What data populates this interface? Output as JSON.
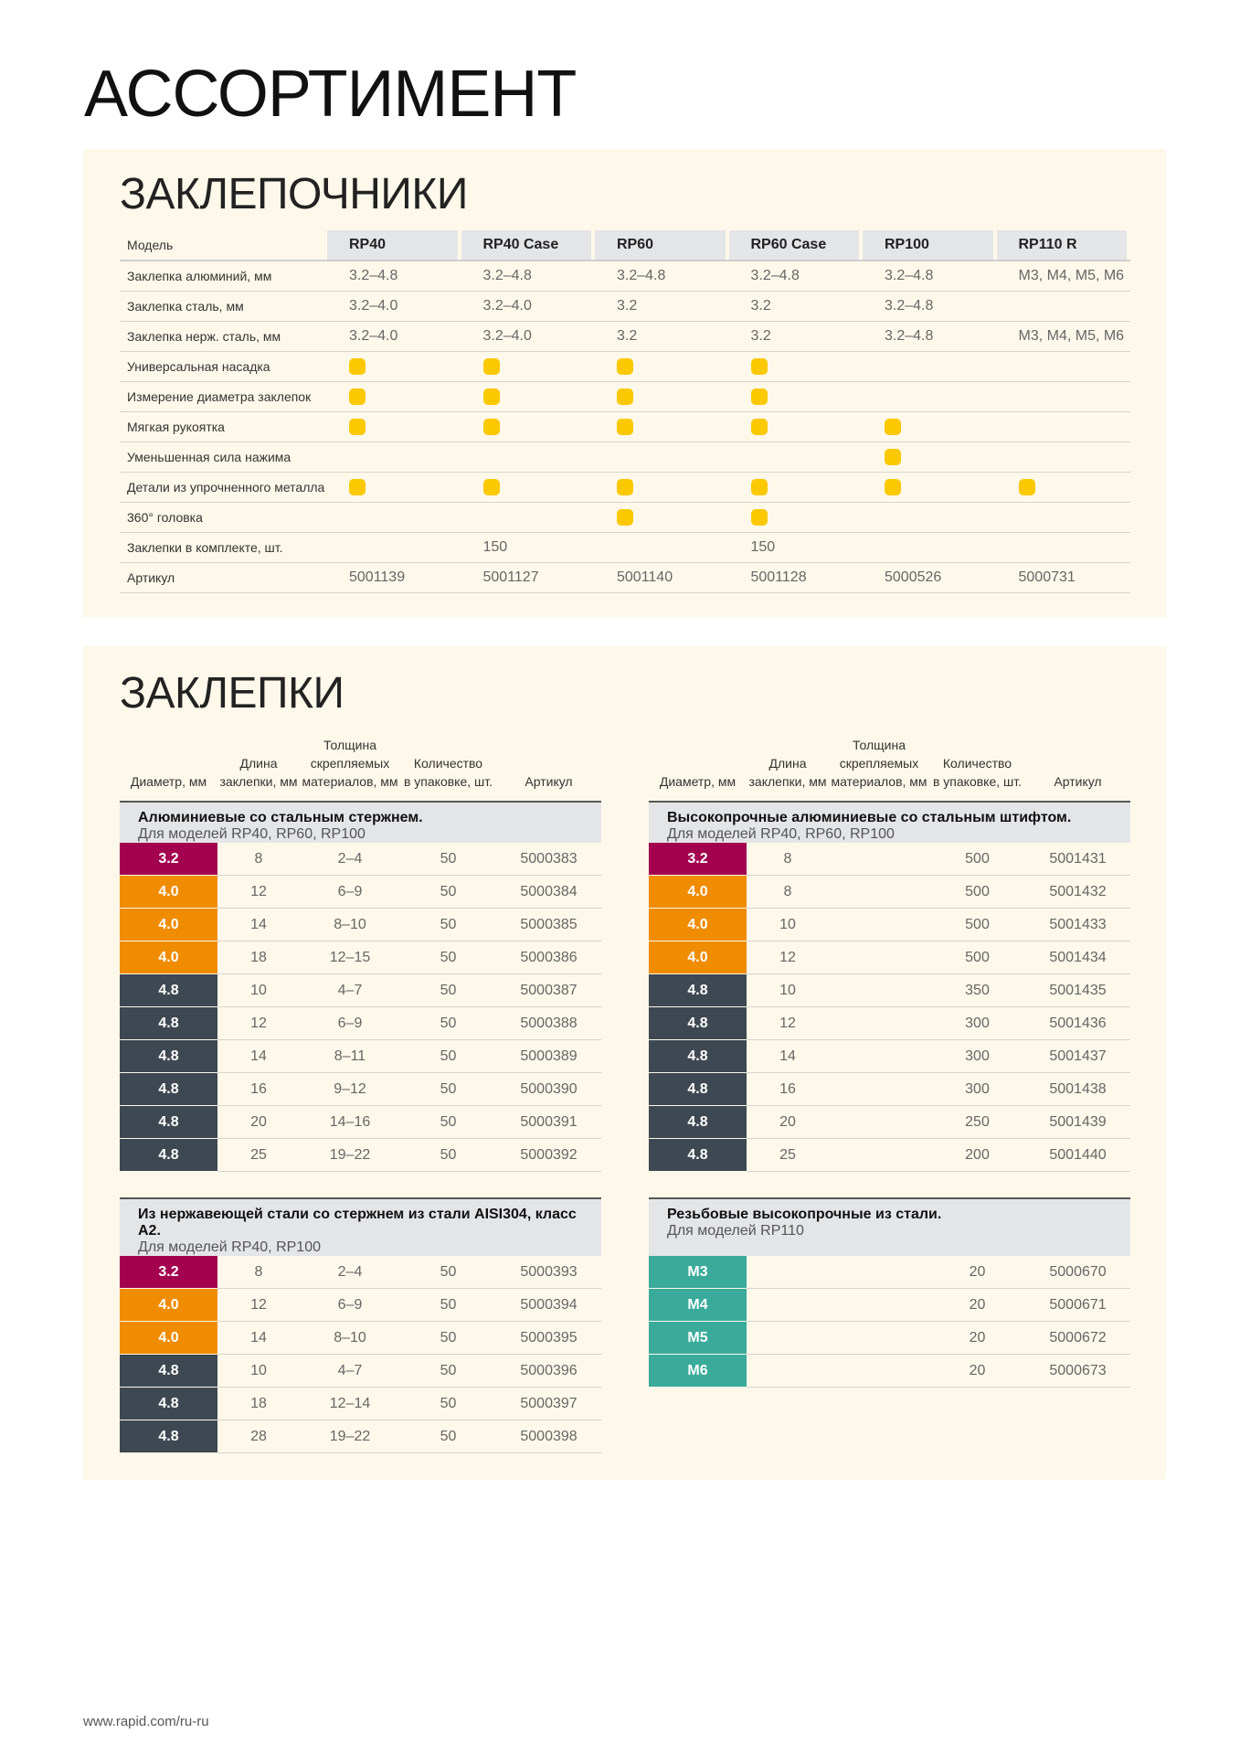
{
  "title": "АССОРТИМЕНТ",
  "tools": {
    "heading": "ЗАКЛЕПОЧНИКИ",
    "label_header": "Модель",
    "models": [
      "RP40",
      "RP40 Case",
      "RP60",
      "RP60 Case",
      "RP100",
      "RP110 R"
    ],
    "rows": [
      {
        "label": "Заклепка алюминий, мм",
        "values": [
          "3.2–4.8",
          "3.2–4.8",
          "3.2–4.8",
          "3.2–4.8",
          "3.2–4.8",
          "M3, M4, M5, M6"
        ]
      },
      {
        "label": "Заклепка сталь, мм",
        "values": [
          "3.2–4.0",
          "3.2–4.0",
          "3.2",
          "3.2",
          "3.2–4.8",
          ""
        ]
      },
      {
        "label": "Заклепка нерж. сталь, мм",
        "values": [
          "3.2–4.0",
          "3.2–4.0",
          "3.2",
          "3.2",
          "3.2–4.8",
          "M3, M4, M5, M6"
        ]
      },
      {
        "label": "Универсальная насадка",
        "dots": [
          1,
          1,
          1,
          1,
          0,
          0
        ]
      },
      {
        "label": "Измерение диаметра заклепок",
        "dots": [
          1,
          1,
          1,
          1,
          0,
          0
        ]
      },
      {
        "label": "Мягкая рукоятка",
        "dots": [
          1,
          1,
          1,
          1,
          1,
          0
        ]
      },
      {
        "label": "Уменьшенная сила нажима",
        "dots": [
          0,
          0,
          0,
          0,
          1,
          0
        ]
      },
      {
        "label": "Детали из упрочненного металла",
        "dots": [
          1,
          1,
          1,
          1,
          1,
          1
        ]
      },
      {
        "label": "360° головка",
        "dots": [
          0,
          0,
          1,
          1,
          0,
          0
        ]
      },
      {
        "label": "Заклепки в комплекте, шт.",
        "values": [
          "",
          "150",
          "",
          "150",
          "",
          ""
        ]
      },
      {
        "label": "Артикул",
        "values": [
          "5001139",
          "5001127",
          "5001140",
          "5001128",
          "5000526",
          "5000731"
        ]
      }
    ]
  },
  "rivets": {
    "heading": "ЗАКЛЕПКИ",
    "columns": [
      "Диаметр, мм",
      "Длина\nзаклепки, мм",
      "Толщина\nскрепляемых\nматериалов, мм",
      "Количество\nв упаковке, шт.",
      "Артикул"
    ],
    "colors": {
      "3.2": "#a3004f",
      "4.0": "#f08c00",
      "4.8": "#3e4852",
      "M": "#3aab9b"
    },
    "tables": [
      {
        "title": "Алюминиевые со стальным стержнем.",
        "subtitle": "Для моделей RP40, RP60, RP100",
        "rows": [
          [
            "3.2",
            "8",
            "2–4",
            "50",
            "5000383"
          ],
          [
            "4.0",
            "12",
            "6–9",
            "50",
            "5000384"
          ],
          [
            "4.0",
            "14",
            "8–10",
            "50",
            "5000385"
          ],
          [
            "4.0",
            "18",
            "12–15",
            "50",
            "5000386"
          ],
          [
            "4.8",
            "10",
            "4–7",
            "50",
            "5000387"
          ],
          [
            "4.8",
            "12",
            "6–9",
            "50",
            "5000388"
          ],
          [
            "4.8",
            "14",
            "8–11",
            "50",
            "5000389"
          ],
          [
            "4.8",
            "16",
            "9–12",
            "50",
            "5000390"
          ],
          [
            "4.8",
            "20",
            "14–16",
            "50",
            "5000391"
          ],
          [
            "4.8",
            "25",
            "19–22",
            "50",
            "5000392"
          ]
        ]
      },
      {
        "title": "Высокопрочные алюминиевые со стальным штифтом.",
        "subtitle": "Для моделей RP40, RP60, RP100",
        "rows": [
          [
            "3.2",
            "8",
            "",
            "500",
            "5001431"
          ],
          [
            "4.0",
            "8",
            "",
            "500",
            "5001432"
          ],
          [
            "4.0",
            "10",
            "",
            "500",
            "5001433"
          ],
          [
            "4.0",
            "12",
            "",
            "500",
            "5001434"
          ],
          [
            "4.8",
            "10",
            "",
            "350",
            "5001435"
          ],
          [
            "4.8",
            "12",
            "",
            "300",
            "5001436"
          ],
          [
            "4.8",
            "14",
            "",
            "300",
            "5001437"
          ],
          [
            "4.8",
            "16",
            "",
            "300",
            "5001438"
          ],
          [
            "4.8",
            "20",
            "",
            "250",
            "5001439"
          ],
          [
            "4.8",
            "25",
            "",
            "200",
            "5001440"
          ]
        ]
      },
      {
        "title": "Из нержавеющей стали со стержнем из стали AISI304, класс А2.",
        "subtitle": "Для моделей RP40, RP100",
        "rows": [
          [
            "3.2",
            "8",
            "2–4",
            "50",
            "5000393"
          ],
          [
            "4.0",
            "12",
            "6–9",
            "50",
            "5000394"
          ],
          [
            "4.0",
            "14",
            "8–10",
            "50",
            "5000395"
          ],
          [
            "4.8",
            "10",
            "4–7",
            "50",
            "5000396"
          ],
          [
            "4.8",
            "18",
            "12–14",
            "50",
            "5000397"
          ],
          [
            "4.8",
            "28",
            "19–22",
            "50",
            "5000398"
          ]
        ]
      },
      {
        "title": "Резьбовые высокопрочные из стали.",
        "subtitle": "Для моделей RP110",
        "rows": [
          [
            "M3",
            "",
            "",
            "20",
            "5000670"
          ],
          [
            "M4",
            "",
            "",
            "20",
            "5000671"
          ],
          [
            "M5",
            "",
            "",
            "20",
            "5000672"
          ],
          [
            "M6",
            "",
            "",
            "20",
            "5000673"
          ]
        ]
      }
    ]
  },
  "footer": "www.rapid.com/ru-ru"
}
